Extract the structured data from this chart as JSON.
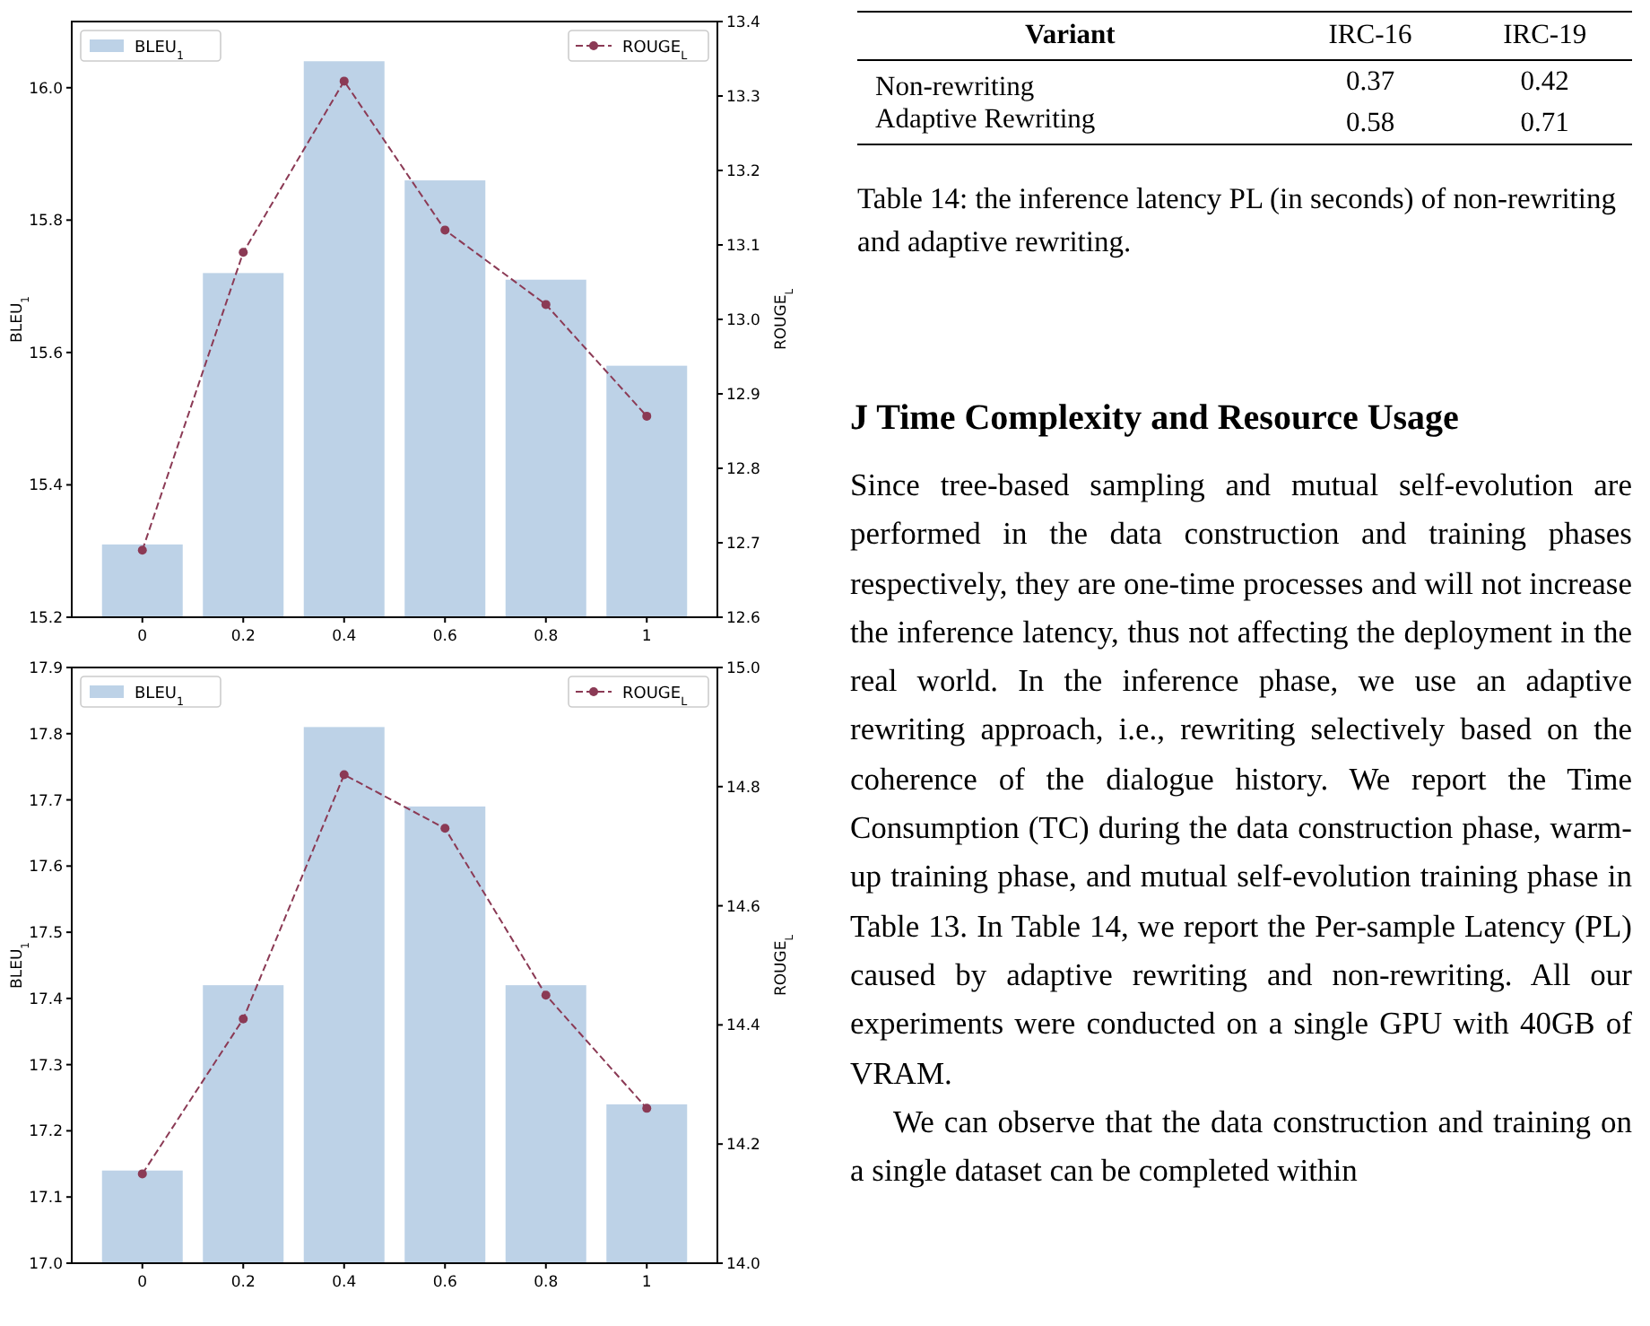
{
  "chart_data": [
    {
      "type": "bar",
      "categories": [
        "0",
        "0.2",
        "0.4",
        "0.6",
        "0.8",
        "1"
      ],
      "ylabel": "BLEU$_{1}$",
      "y2label": "ROUGE$_{L}$",
      "ylim": [
        15.2,
        16.1
      ],
      "yticks": [
        15.2,
        15.4,
        15.6,
        15.8,
        {
          "value": 16,
          "label": "16.0"
        }
      ],
      "y2lim": [
        12.6,
        13.4
      ],
      "y2ticks": [
        12.6,
        12.7,
        12.8,
        12.9,
        {
          "value": 13,
          "label": "13.0"
        },
        13.1,
        13.2,
        13.3,
        13.4
      ],
      "legend": "top",
      "marker": "circle",
      "line_style": "dashed",
      "series": [
        {
          "name": "BLEU$_{1}$",
          "color": "#bdd2e7",
          "values": [
            15.31,
            15.72,
            16.04,
            15.86,
            15.71,
            15.58
          ]
        },
        {
          "name": "ROUGE$_{L}$",
          "type": "line",
          "axis": "y2",
          "color": "#8b3a55",
          "values": [
            12.69,
            13.09,
            13.32,
            13.12,
            13.02,
            12.87
          ]
        }
      ]
    },
    {
      "type": "bar",
      "categories": [
        "0",
        "0.2",
        "0.4",
        "0.6",
        "0.8",
        "1"
      ],
      "ylabel": "BLEU$_{1}$",
      "y2label": "ROUGE$_{L}$",
      "ylim": [
        17.0,
        17.9
      ],
      "yticks": [
        {
          "value": 17,
          "label": "17.0"
        },
        17.1,
        17.2,
        17.3,
        17.4,
        17.5,
        17.6,
        17.7,
        17.8,
        17.9
      ],
      "y2lim": [
        14.0,
        15.0
      ],
      "y2ticks": [
        {
          "value": 14,
          "label": "14.0"
        },
        14.2,
        14.4,
        14.6,
        14.8,
        {
          "value": 15,
          "label": "15.0"
        }
      ],
      "legend": "top",
      "marker": "circle",
      "line_style": "dashed",
      "series": [
        {
          "name": "BLEU$_{1}$",
          "color": "#bdd2e7",
          "values": [
            17.14,
            17.42,
            17.81,
            17.69,
            17.42,
            17.24
          ]
        },
        {
          "name": "ROUGE$_{L}$",
          "type": "line",
          "axis": "y2",
          "color": "#8b3a55",
          "values": [
            14.15,
            14.41,
            14.82,
            14.73,
            14.45,
            14.26
          ]
        }
      ]
    },
    {
      "type": "other",
      "xlabel": "Variant",
      "categories": [
        "Non-rewriting",
        "Adaptive Rewriting"
      ],
      "data_labels": true,
      "series": [
        {
          "name": "IRC-16",
          "values": [
            0.37,
            0.58
          ]
        },
        {
          "name": "IRC-19",
          "values": [
            0.42,
            0.71
          ]
        }
      ],
      "annotations": [
        "Table 14: the inference latency PL (in seconds) of non-rewriting and adaptive rewriting."
      ]
    },
    {
      "type": "other",
      "title": "J Time Complexity and Resource Usage",
      "annotations": [
        "Since tree-based sampling and mutual self-evolution are performed in the data construction and training phases respectively, they are one-time processes and will not increase the inference latency, thus not affecting the deployment in the real world. In the inference phase, we use an adaptive rewriting approach, i.e., rewriting selectively based on the coherence of the dialogue history. We report the Time Consumption (TC) during the data construction phase, warm-up training phase, and mutual self-evolution training phase in Table 13. In Table 14, we report the Per-sample Latency (PL) caused by adaptive rewriting and non-rewriting. All our experiments were conducted on a single GPU with 40GB of VRAM.",
        "We can observe that the data construction and training on a single dataset can be completed within"
      ]
    }
  ]
}
